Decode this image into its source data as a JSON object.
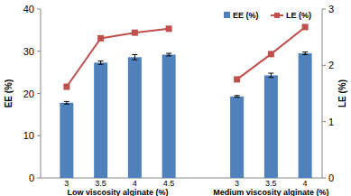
{
  "chart_data": {
    "type": "bar",
    "categories": [
      "3",
      "3.5",
      "4",
      "4.5",
      null,
      "3",
      "3.5",
      "4"
    ],
    "annotations": [
      "Low viscosity alginate (%)",
      "Medium viscosity alginate (%)"
    ],
    "ylabel": "EE (%)",
    "y2label": "LE (%)",
    "ylim": [
      0,
      40
    ],
    "yticks": [
      0,
      10,
      20,
      30,
      40
    ],
    "y2lim": [
      0,
      3
    ],
    "y2ticks": [
      0,
      1,
      2,
      3
    ],
    "grid": false,
    "legend": "upper right",
    "series": [
      {
        "name": "EE (%)",
        "type": "bar",
        "color": "#4f81bd",
        "values": [
          17.8,
          27.3,
          28.6,
          29.2,
          null,
          19.3,
          24.3,
          29.5
        ],
        "errors": [
          0.3,
          0.4,
          0.6,
          0.3,
          null,
          0.2,
          0.5,
          0.3
        ]
      },
      {
        "name": "LE (%)",
        "type": "line",
        "color": "#c0504d",
        "marker": "square",
        "axis": "y2",
        "values": [
          1.62,
          2.48,
          2.58,
          2.65,
          null,
          1.75,
          2.2,
          2.68
        ]
      }
    ]
  }
}
